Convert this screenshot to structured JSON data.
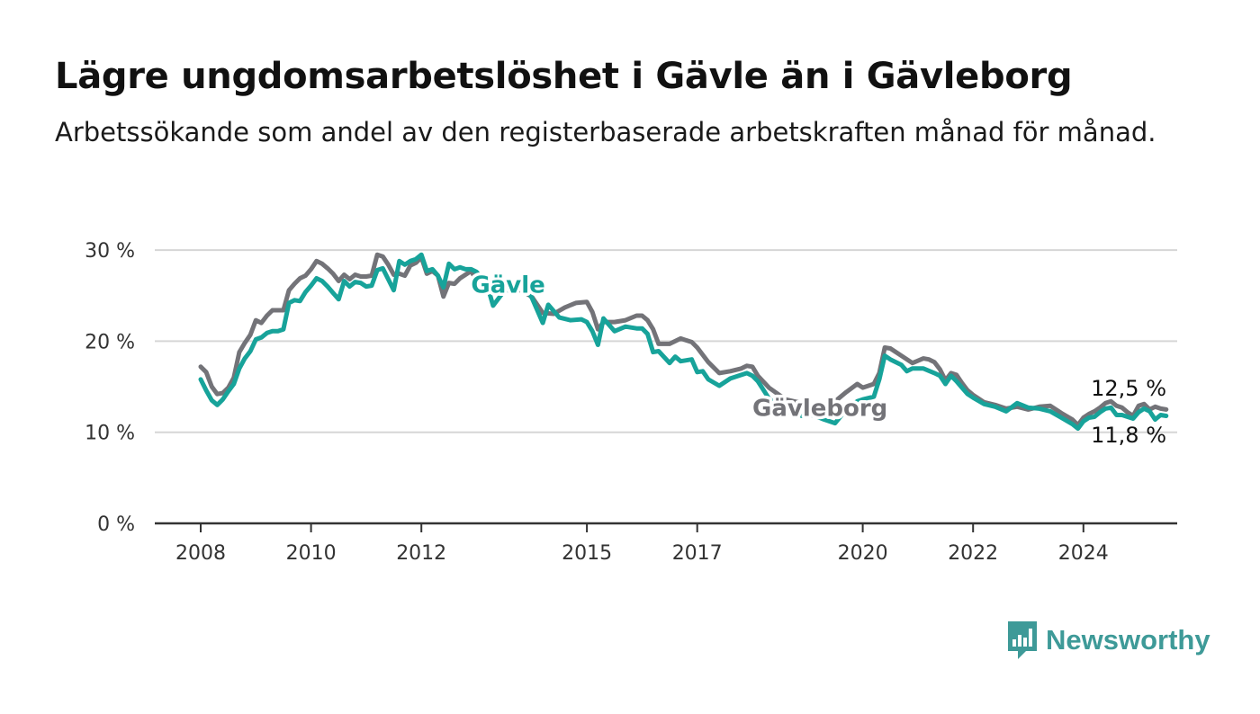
{
  "title": "Lägre ungdomsarbetslöshet i Gävle än i Gävleborg",
  "subtitle": "Arbetssökande som andel av den registerbaserade arbetskraften månad för månad.",
  "brand": "Newsworthy",
  "colors": {
    "gavle": "#17a39a",
    "gavleborg": "#737378",
    "grid": "#d6d6d6",
    "axis": "#333333",
    "brand": "#3e9a98"
  },
  "icons": [
    "bar-chart-speech-icon"
  ],
  "chart_data": {
    "type": "line",
    "xlim": [
      2008.0,
      2025.0
    ],
    "ylim": [
      0,
      30
    ],
    "y_ticks": [
      0,
      10,
      20,
      30
    ],
    "y_tick_labels": [
      "0 %",
      "10 %",
      "20 %",
      "30 %"
    ],
    "x_ticks": [
      2008,
      2010,
      2012,
      2015,
      2017,
      2020,
      2022,
      2024
    ],
    "x_tick_labels": [
      "2008",
      "2010",
      "2012",
      "2015",
      "2017",
      "2020",
      "2022",
      "2024"
    ],
    "grid": true,
    "legend": "direct labels on lines",
    "end_labels": {
      "gavleborg": "12,5 %",
      "gavle": "11,8 %"
    },
    "series": [
      {
        "name": "Gävleborg",
        "key": "gavleborg",
        "points": [
          [
            2008.0,
            17.2
          ],
          [
            2008.1,
            16.6
          ],
          [
            2008.2,
            15.0
          ],
          [
            2008.3,
            14.2
          ],
          [
            2008.4,
            14.3
          ],
          [
            2008.5,
            14.9
          ],
          [
            2008.6,
            16.0
          ],
          [
            2008.7,
            18.8
          ],
          [
            2008.8,
            19.8
          ],
          [
            2008.9,
            20.7
          ],
          [
            2009.0,
            22.3
          ],
          [
            2009.1,
            22.0
          ],
          [
            2009.2,
            22.8
          ],
          [
            2009.3,
            23.4
          ],
          [
            2009.4,
            23.4
          ],
          [
            2009.5,
            23.4
          ],
          [
            2009.6,
            25.6
          ],
          [
            2009.7,
            26.3
          ],
          [
            2009.8,
            26.9
          ],
          [
            2009.9,
            27.2
          ],
          [
            2010.0,
            27.9
          ],
          [
            2010.1,
            28.8
          ],
          [
            2010.2,
            28.5
          ],
          [
            2010.3,
            28.0
          ],
          [
            2010.4,
            27.4
          ],
          [
            2010.5,
            26.6
          ],
          [
            2010.6,
            27.3
          ],
          [
            2010.7,
            26.8
          ],
          [
            2010.8,
            27.3
          ],
          [
            2010.9,
            27.1
          ],
          [
            2011.0,
            27.1
          ],
          [
            2011.1,
            27.2
          ],
          [
            2011.2,
            29.5
          ],
          [
            2011.3,
            29.3
          ],
          [
            2011.4,
            28.4
          ],
          [
            2011.5,
            27.3
          ],
          [
            2011.6,
            27.4
          ],
          [
            2011.7,
            27.2
          ],
          [
            2011.8,
            28.3
          ],
          [
            2011.9,
            28.6
          ],
          [
            2012.0,
            29.2
          ],
          [
            2012.1,
            27.4
          ],
          [
            2012.2,
            27.7
          ],
          [
            2012.3,
            27.2
          ],
          [
            2012.4,
            24.9
          ],
          [
            2012.5,
            26.4
          ],
          [
            2012.6,
            26.3
          ],
          [
            2012.7,
            26.9
          ],
          [
            2012.8,
            27.3
          ],
          [
            2012.9,
            27.7
          ],
          [
            2013.0,
            26.7
          ],
          [
            2013.2,
            26.2
          ],
          [
            2013.4,
            25.7
          ],
          [
            2013.6,
            25.6
          ],
          [
            2013.8,
            25.6
          ],
          [
            2014.0,
            24.9
          ],
          [
            2014.2,
            23.1
          ],
          [
            2014.4,
            23.0
          ],
          [
            2014.6,
            23.7
          ],
          [
            2014.8,
            24.2
          ],
          [
            2015.0,
            24.3
          ],
          [
            2015.1,
            23.2
          ],
          [
            2015.2,
            21.3
          ],
          [
            2015.3,
            22.1
          ],
          [
            2015.5,
            22.1
          ],
          [
            2015.7,
            22.3
          ],
          [
            2015.9,
            22.8
          ],
          [
            2016.0,
            22.8
          ],
          [
            2016.1,
            22.3
          ],
          [
            2016.2,
            21.3
          ],
          [
            2016.3,
            19.7
          ],
          [
            2016.5,
            19.7
          ],
          [
            2016.7,
            20.3
          ],
          [
            2016.9,
            19.9
          ],
          [
            2017.0,
            19.3
          ],
          [
            2017.2,
            17.7
          ],
          [
            2017.4,
            16.5
          ],
          [
            2017.6,
            16.7
          ],
          [
            2017.8,
            17.0
          ],
          [
            2017.9,
            17.3
          ],
          [
            2018.0,
            17.2
          ],
          [
            2018.1,
            16.2
          ],
          [
            2018.3,
            14.9
          ],
          [
            2018.6,
            13.6
          ],
          [
            2018.9,
            13.2
          ],
          [
            2019.2,
            12.8
          ],
          [
            2019.5,
            13.4
          ],
          [
            2019.7,
            14.4
          ],
          [
            2019.9,
            15.3
          ],
          [
            2020.0,
            14.9
          ],
          [
            2020.2,
            15.3
          ],
          [
            2020.3,
            16.5
          ],
          [
            2020.4,
            19.3
          ],
          [
            2020.5,
            19.2
          ],
          [
            2020.7,
            18.4
          ],
          [
            2020.9,
            17.6
          ],
          [
            2021.1,
            18.1
          ],
          [
            2021.2,
            18.0
          ],
          [
            2021.3,
            17.7
          ],
          [
            2021.4,
            16.9
          ],
          [
            2021.5,
            15.7
          ],
          [
            2021.6,
            16.5
          ],
          [
            2021.7,
            16.3
          ],
          [
            2021.8,
            15.4
          ],
          [
            2021.9,
            14.6
          ],
          [
            2022.0,
            14.1
          ],
          [
            2022.2,
            13.3
          ],
          [
            2022.4,
            13.0
          ],
          [
            2022.6,
            12.6
          ],
          [
            2022.8,
            12.8
          ],
          [
            2023.0,
            12.5
          ],
          [
            2023.2,
            12.8
          ],
          [
            2023.4,
            12.9
          ],
          [
            2023.6,
            12.1
          ],
          [
            2023.8,
            11.4
          ],
          [
            2023.9,
            10.8
          ],
          [
            2024.0,
            11.6
          ],
          [
            2024.1,
            12.0
          ],
          [
            2024.2,
            12.3
          ],
          [
            2024.3,
            12.7
          ],
          [
            2024.4,
            13.2
          ],
          [
            2024.5,
            13.4
          ],
          [
            2024.6,
            12.9
          ],
          [
            2024.7,
            12.7
          ],
          [
            2024.8,
            12.2
          ],
          [
            2024.9,
            11.8
          ],
          [
            2025.0,
            12.9
          ],
          [
            2025.1,
            13.1
          ],
          [
            2025.2,
            12.5
          ],
          [
            2025.3,
            12.8
          ],
          [
            2025.4,
            12.6
          ],
          [
            2025.5,
            12.5
          ]
        ]
      },
      {
        "name": "Gävle",
        "key": "gavle",
        "points": [
          [
            2008.0,
            15.8
          ],
          [
            2008.1,
            14.6
          ],
          [
            2008.2,
            13.5
          ],
          [
            2008.3,
            13.0
          ],
          [
            2008.4,
            13.6
          ],
          [
            2008.5,
            14.5
          ],
          [
            2008.6,
            15.3
          ],
          [
            2008.7,
            17.0
          ],
          [
            2008.8,
            18.1
          ],
          [
            2008.9,
            18.9
          ],
          [
            2009.0,
            20.2
          ],
          [
            2009.1,
            20.4
          ],
          [
            2009.2,
            20.9
          ],
          [
            2009.3,
            21.1
          ],
          [
            2009.4,
            21.1
          ],
          [
            2009.5,
            21.3
          ],
          [
            2009.6,
            24.2
          ],
          [
            2009.7,
            24.5
          ],
          [
            2009.8,
            24.4
          ],
          [
            2009.9,
            25.4
          ],
          [
            2010.0,
            26.1
          ],
          [
            2010.1,
            26.9
          ],
          [
            2010.2,
            26.6
          ],
          [
            2010.3,
            26.0
          ],
          [
            2010.4,
            25.3
          ],
          [
            2010.5,
            24.6
          ],
          [
            2010.6,
            26.6
          ],
          [
            2010.7,
            26.0
          ],
          [
            2010.8,
            26.5
          ],
          [
            2010.9,
            26.4
          ],
          [
            2011.0,
            26.0
          ],
          [
            2011.1,
            26.1
          ],
          [
            2011.2,
            27.8
          ],
          [
            2011.3,
            28.0
          ],
          [
            2011.4,
            26.8
          ],
          [
            2011.5,
            25.6
          ],
          [
            2011.6,
            28.8
          ],
          [
            2011.7,
            28.4
          ],
          [
            2011.8,
            28.8
          ],
          [
            2011.9,
            29.0
          ],
          [
            2012.0,
            29.5
          ],
          [
            2012.1,
            27.7
          ],
          [
            2012.2,
            27.9
          ],
          [
            2012.3,
            27.2
          ],
          [
            2012.4,
            25.9
          ],
          [
            2012.5,
            28.5
          ],
          [
            2012.6,
            27.9
          ],
          [
            2012.7,
            28.1
          ],
          [
            2012.8,
            27.9
          ],
          [
            2012.9,
            27.9
          ],
          [
            2013.0,
            27.6
          ],
          [
            2013.2,
            26.0
          ],
          [
            2013.3,
            23.9
          ],
          [
            2013.5,
            25.5
          ],
          [
            2013.7,
            25.8
          ],
          [
            2013.9,
            25.7
          ],
          [
            2014.0,
            24.8
          ],
          [
            2014.2,
            22.0
          ],
          [
            2014.3,
            24.0
          ],
          [
            2014.5,
            22.6
          ],
          [
            2014.7,
            22.3
          ],
          [
            2014.9,
            22.4
          ],
          [
            2015.0,
            22.1
          ],
          [
            2015.1,
            21.1
          ],
          [
            2015.2,
            19.6
          ],
          [
            2015.3,
            22.5
          ],
          [
            2015.5,
            21.1
          ],
          [
            2015.7,
            21.6
          ],
          [
            2015.9,
            21.4
          ],
          [
            2016.0,
            21.4
          ],
          [
            2016.1,
            20.8
          ],
          [
            2016.2,
            18.8
          ],
          [
            2016.3,
            18.9
          ],
          [
            2016.5,
            17.6
          ],
          [
            2016.6,
            18.3
          ],
          [
            2016.7,
            17.8
          ],
          [
            2016.9,
            18.0
          ],
          [
            2017.0,
            16.6
          ],
          [
            2017.1,
            16.7
          ],
          [
            2017.2,
            15.8
          ],
          [
            2017.4,
            15.1
          ],
          [
            2017.6,
            15.9
          ],
          [
            2017.8,
            16.3
          ],
          [
            2017.9,
            16.5
          ],
          [
            2018.0,
            16.2
          ],
          [
            2018.1,
            15.6
          ],
          [
            2018.3,
            13.7
          ],
          [
            2018.5,
            12.7
          ],
          [
            2018.7,
            12.1
          ],
          [
            2018.9,
            11.8
          ],
          [
            2019.1,
            11.9
          ],
          [
            2019.3,
            11.4
          ],
          [
            2019.5,
            11.0
          ],
          [
            2019.7,
            12.5
          ],
          [
            2019.9,
            13.4
          ],
          [
            2020.0,
            13.6
          ],
          [
            2020.2,
            13.9
          ],
          [
            2020.3,
            15.8
          ],
          [
            2020.4,
            18.4
          ],
          [
            2020.5,
            18.0
          ],
          [
            2020.7,
            17.4
          ],
          [
            2020.8,
            16.7
          ],
          [
            2020.9,
            17.0
          ],
          [
            2021.1,
            17.0
          ],
          [
            2021.3,
            16.5
          ],
          [
            2021.4,
            16.2
          ],
          [
            2021.5,
            15.3
          ],
          [
            2021.6,
            16.2
          ],
          [
            2021.7,
            15.6
          ],
          [
            2021.8,
            14.9
          ],
          [
            2021.9,
            14.2
          ],
          [
            2022.0,
            13.8
          ],
          [
            2022.2,
            13.1
          ],
          [
            2022.4,
            12.8
          ],
          [
            2022.6,
            12.3
          ],
          [
            2022.8,
            13.2
          ],
          [
            2023.0,
            12.7
          ],
          [
            2023.2,
            12.6
          ],
          [
            2023.4,
            12.3
          ],
          [
            2023.6,
            11.6
          ],
          [
            2023.8,
            10.9
          ],
          [
            2023.9,
            10.4
          ],
          [
            2024.0,
            11.2
          ],
          [
            2024.1,
            11.6
          ],
          [
            2024.2,
            11.7
          ],
          [
            2024.3,
            12.2
          ],
          [
            2024.4,
            12.6
          ],
          [
            2024.5,
            12.7
          ],
          [
            2024.6,
            11.9
          ],
          [
            2024.7,
            11.9
          ],
          [
            2024.8,
            11.7
          ],
          [
            2024.9,
            11.5
          ],
          [
            2025.0,
            12.2
          ],
          [
            2025.1,
            12.6
          ],
          [
            2025.2,
            12.3
          ],
          [
            2025.3,
            11.4
          ],
          [
            2025.4,
            11.9
          ],
          [
            2025.5,
            11.8
          ]
        ]
      }
    ]
  }
}
